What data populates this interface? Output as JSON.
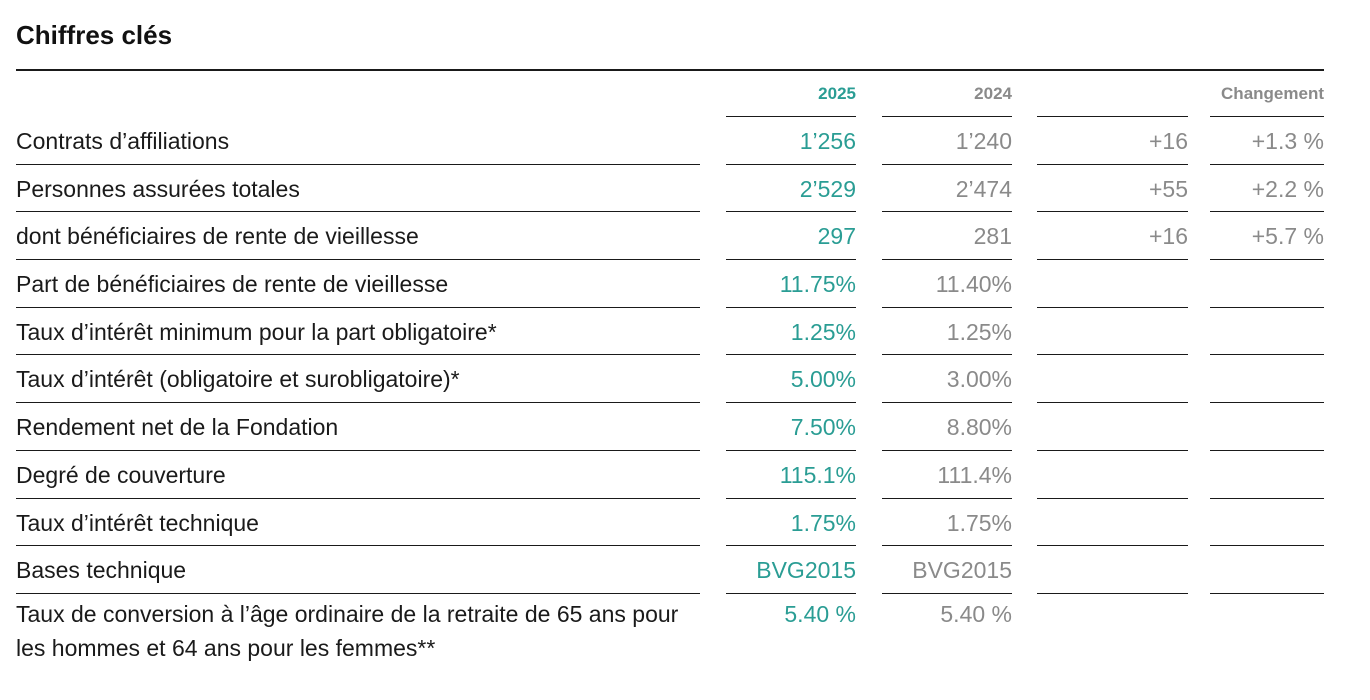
{
  "title": "Chiffres clés",
  "headers": {
    "y2025": "2025",
    "y2024": "2024",
    "change": "Changement"
  },
  "colors": {
    "accent": "#2a9d94",
    "muted": "#8a8a8a",
    "text": "#1a1a1a"
  },
  "rows": [
    {
      "label": "Contrats d’affiliations",
      "v2025": "1’256",
      "v2024": "1’240",
      "change_abs": "+16",
      "change_pct": "+1.3 %"
    },
    {
      "label": "Personnes assurées totales",
      "v2025": "2’529",
      "v2024": "2’474",
      "change_abs": "+55",
      "change_pct": "+2.2 %"
    },
    {
      "label": "dont bénéficiaires de rente de vieillesse",
      "v2025": "297",
      "v2024": "281",
      "change_abs": "+16",
      "change_pct": "+5.7 %"
    },
    {
      "label": "Part de bénéficiaires de rente de vieillesse",
      "v2025": "11.75%",
      "v2024": "11.40%",
      "change_abs": "",
      "change_pct": ""
    },
    {
      "label": "Taux d’intérêt minimum pour la part obligatoire*",
      "v2025": "1.25%",
      "v2024": "1.25%",
      "change_abs": "",
      "change_pct": ""
    },
    {
      "label": "Taux d’intérêt (obligatoire et surobligatoire)*",
      "v2025": "5.00%",
      "v2024": "3.00%",
      "change_abs": "",
      "change_pct": ""
    },
    {
      "label": "Rendement net de la Fondation",
      "v2025": "7.50%",
      "v2024": "8.80%",
      "change_abs": "",
      "change_pct": ""
    },
    {
      "label": "Degré de couverture",
      "v2025": "115.1%",
      "v2024": "111.4%",
      "change_abs": "",
      "change_pct": ""
    },
    {
      "label": "Taux d’intérêt technique",
      "v2025": "1.75%",
      "v2024": "1.75%",
      "change_abs": "",
      "change_pct": ""
    },
    {
      "label": "Bases technique",
      "v2025": "BVG2015",
      "v2024": "BVG2015",
      "change_abs": "",
      "change_pct": ""
    },
    {
      "label": "Taux de conversion à l’âge ordinaire de la retraite de 65 ans pour les hommes et 64 ans pour les femmes**",
      "v2025": "5.40 %",
      "v2024": "5.40 %",
      "change_abs": "",
      "change_pct": ""
    }
  ]
}
